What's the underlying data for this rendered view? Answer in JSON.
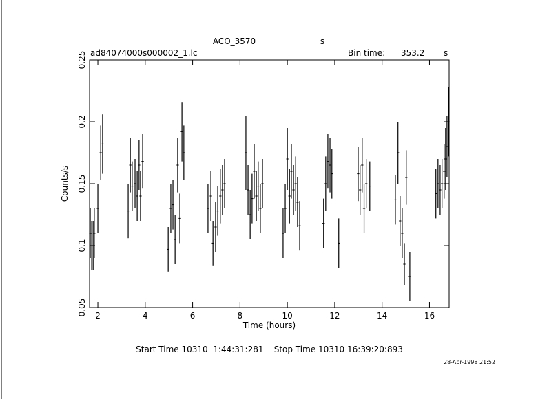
{
  "chart_data": {
    "type": "errorbar",
    "title": "ACO_3570",
    "title_right": "s",
    "subtitle": "ad84074000s000002_1.lc",
    "bin_time_label": "Bin time:",
    "bin_time": 353.2,
    "bin_time_unit": "s",
    "x_label": "Time (hours)",
    "y_label": "Counts/s",
    "footer": "Start Time 10310  1:44:31:281    Stop Time 10310 16:39:20:893",
    "date_stamp": "28-Apr-1998 21:52",
    "xlim": [
      1.65,
      16.83
    ],
    "ylim": [
      0.05,
      0.25
    ],
    "xticks": [
      2,
      4,
      6,
      8,
      10,
      12,
      14,
      16
    ],
    "yticks": [
      0.05,
      0.1,
      0.15,
      0.2,
      0.25
    ],
    "color": "#000000",
    "series": [
      {
        "x": [
          1.68,
          1.74,
          1.8,
          1.85,
          2.0,
          2.12,
          2.2,
          3.28,
          3.37,
          3.45,
          3.57,
          3.66,
          3.74,
          3.8,
          3.89,
          4.97,
          5.08,
          5.17,
          5.26,
          5.37,
          5.46,
          5.55,
          5.63,
          6.65,
          6.77,
          6.86,
          6.97,
          7.06,
          7.17,
          7.26,
          7.35,
          8.25,
          8.34,
          8.43,
          8.51,
          8.6,
          8.69,
          8.77,
          8.86,
          8.95,
          9.82,
          9.91,
          10.0,
          10.09,
          10.17,
          10.26,
          10.35,
          10.43,
          10.52,
          11.53,
          11.62,
          11.71,
          11.8,
          11.88,
          12.17,
          12.99,
          13.07,
          13.16,
          13.24,
          13.33,
          13.48,
          14.56,
          14.67,
          14.76,
          14.85,
          14.94,
          15.02,
          15.17,
          16.27,
          16.36,
          16.45,
          16.53,
          16.62,
          16.68,
          16.74,
          16.8
        ],
        "values": [
          0.11,
          0.1,
          0.1,
          0.11,
          0.13,
          0.175,
          0.182,
          0.128,
          0.165,
          0.148,
          0.15,
          0.14,
          0.165,
          0.14,
          0.168,
          0.097,
          0.13,
          0.133,
          0.105,
          0.165,
          0.122,
          0.192,
          0.175,
          0.13,
          0.14,
          0.102,
          0.115,
          0.128,
          0.14,
          0.145,
          0.15,
          0.175,
          0.145,
          0.125,
          0.138,
          0.16,
          0.14,
          0.148,
          0.13,
          0.15,
          0.11,
          0.13,
          0.17,
          0.14,
          0.16,
          0.145,
          0.15,
          0.135,
          0.116,
          0.118,
          0.15,
          0.168,
          0.165,
          0.158,
          0.102,
          0.158,
          0.145,
          0.165,
          0.13,
          0.15,
          0.148,
          0.137,
          0.175,
          0.12,
          0.11,
          0.085,
          0.155,
          0.075,
          0.142,
          0.15,
          0.145,
          0.15,
          0.16,
          0.17,
          0.18,
          0.2
        ],
        "yerr": [
          0.02,
          0.02,
          0.02,
          0.02,
          0.02,
          0.022,
          0.024,
          0.022,
          0.022,
          0.02,
          0.02,
          0.02,
          0.02,
          0.02,
          0.022,
          0.018,
          0.02,
          0.02,
          0.02,
          0.022,
          0.02,
          0.024,
          0.022,
          0.02,
          0.02,
          0.018,
          0.02,
          0.02,
          0.022,
          0.02,
          0.02,
          0.03,
          0.02,
          0.02,
          0.02,
          0.022,
          0.02,
          0.02,
          0.02,
          0.02,
          0.02,
          0.02,
          0.025,
          0.022,
          0.022,
          0.02,
          0.022,
          0.02,
          0.02,
          0.02,
          0.022,
          0.022,
          0.022,
          0.02,
          0.02,
          0.022,
          0.02,
          0.022,
          0.02,
          0.02,
          0.02,
          0.02,
          0.025,
          0.02,
          0.02,
          0.017,
          0.022,
          0.02,
          0.02,
          0.02,
          0.02,
          0.02,
          0.022,
          0.025,
          0.025,
          0.028
        ]
      }
    ]
  }
}
